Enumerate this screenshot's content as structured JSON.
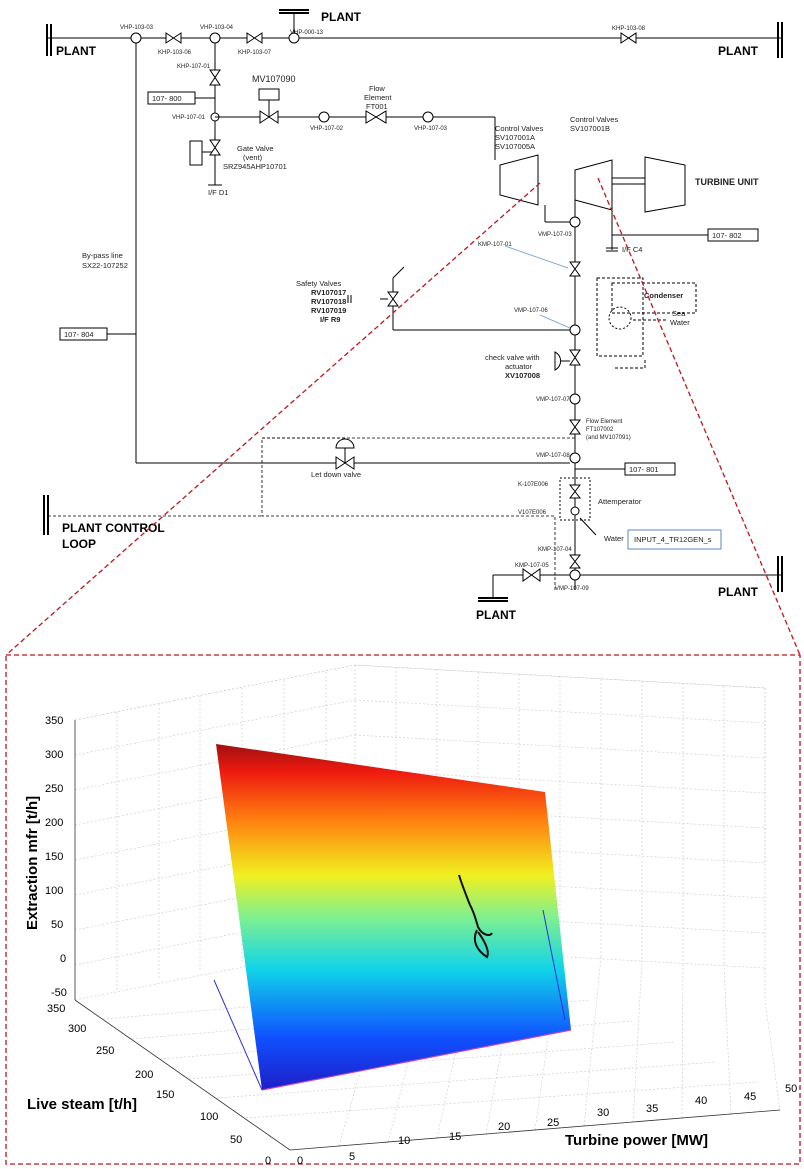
{
  "diagram": {
    "plant_labels": {
      "top_left": "PLANT",
      "top_center": "PLANT",
      "top_right": "PLANT",
      "right_lower": "PLANT",
      "bottom": "PLANT",
      "control_loop": "PLANT CONTROL",
      "control_loop_2": "LOOP"
    },
    "valve_tags": {
      "vhp103_03": "VHP-103-03",
      "vhp103_04": "VHP-103-04",
      "vhp000_13": "VHP-000-13",
      "khp103_06": "KHP-103-06",
      "khp103_07": "KHP-103-07",
      "khp103_08": "KHP-103-08",
      "khp107_01": "KHP-107-01",
      "vhp107_01": "VHP-107-01",
      "vhp107_02": "VHP-107-02",
      "vhp107_03": "VHP-107-03",
      "vmp107_03": "VMP-107-03",
      "kmp107_01": "KMP-107-01",
      "vmp107_06": "VMP-107-06",
      "vmp107_07": "VMP-107-07",
      "vmp107_08": "VMP-107-08",
      "k107e006": "K-107E006",
      "v107e006": "V107E006",
      "kmp107_04": "KMP-107-04",
      "kmp107_05": "KMP-107-05",
      "vmp107_09": "VMP-107-09"
    },
    "boxes": {
      "b107_800": "107- 800",
      "b107_802": "107- 802",
      "b107_804": "107- 804",
      "b107_801": "107- 801",
      "input_tag": "INPUT_4_TR12GEN_s"
    },
    "labels": {
      "mv107090": "MV107090",
      "flow1": "Flow",
      "flow2": "Element",
      "flow3": "FT001",
      "gate1": "Gate Valve",
      "gate2": "(vent)",
      "gate3": "SRZ945AHP10701",
      "ifd1": "I/F D1",
      "cv_a1": "Control Valves",
      "cv_a2": "SV107001A",
      "cv_a3": "SV107005A",
      "cv_b1": "Control Valves",
      "cv_b2": "SV107001B",
      "turbine": "TURBINE UNIT",
      "ifc4": "I/F C4",
      "bypass1": "By-pass line",
      "bypass2": "SX22-107252",
      "sv1": "Safety Valves",
      "sv2": "RV107017",
      "sv3": "RV107018",
      "sv4": "RV107019",
      "sv5": "I/F R9",
      "condenser": "Condenser",
      "sea": "Sea",
      "water_c": "Water",
      "check1": "check valve with",
      "check2": "actuator",
      "check3": "XV107008",
      "fe2_1": "Flow Element",
      "fe2_2": "FT107002",
      "fe2_3": "(and MV107091)",
      "letdown": "Let down valve",
      "attemp": "Attemperator",
      "water": "Water"
    }
  },
  "chart_data": {
    "type": "surface",
    "zlabel": "Extraction mfr [t/h]",
    "ylabel": "Live steam [t/h]",
    "xlabel": "Turbine power [MW]",
    "z_ticks": [
      "350",
      "300",
      "250",
      "200",
      "150",
      "100",
      "50",
      "0",
      "-50"
    ],
    "y_ticks": [
      "350",
      "300",
      "250",
      "200",
      "150",
      "100",
      "50",
      "0"
    ],
    "x_ticks": [
      "0",
      "5",
      "10",
      "15",
      "20",
      "25",
      "30",
      "35",
      "40",
      "45",
      "50"
    ],
    "xlim": [
      0,
      50
    ],
    "ylim": [
      0,
      350
    ],
    "zlim": [
      -50,
      350
    ],
    "colormap": [
      "#00008f",
      "#0000ff",
      "#00ffff",
      "#ffff00",
      "#ff0000",
      "#800000"
    ],
    "grid": true
  }
}
